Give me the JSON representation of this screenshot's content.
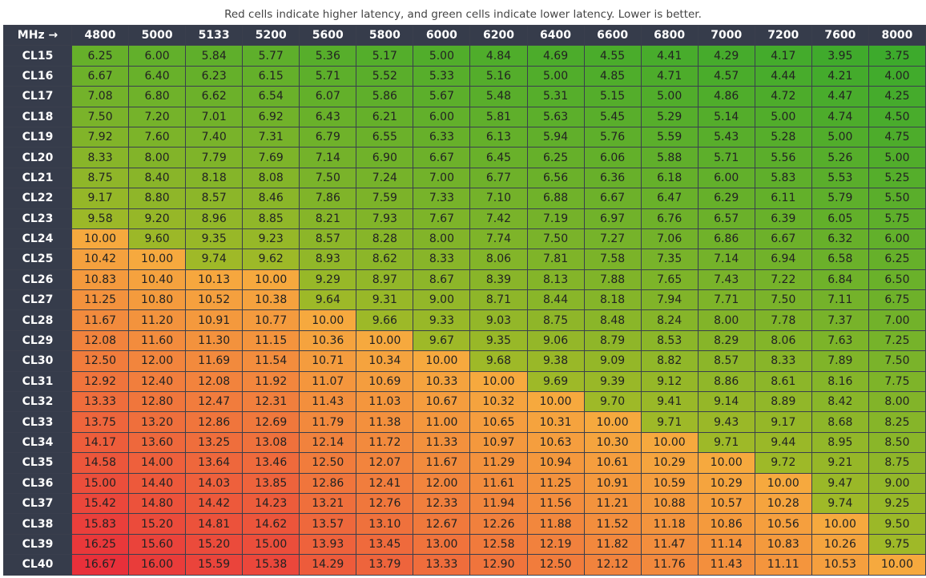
{
  "caption": "Red cells indicate higher latency, and green cells indicate lower latency. Lower is better.",
  "table": {
    "header": [
      "MHz →",
      "4800",
      "5000",
      "5133",
      "5200",
      "5600",
      "5800",
      "6000",
      "6200",
      "6400",
      "6600",
      "6800",
      "7000",
      "7200",
      "7600",
      "8000"
    ],
    "rows": [
      [
        "CL15",
        "6.25",
        "6.00",
        "5.84",
        "5.77",
        "5.36",
        "5.17",
        "5.00",
        "4.84",
        "4.69",
        "4.55",
        "4.41",
        "4.29",
        "4.17",
        "3.95",
        "3.75"
      ],
      [
        "CL16",
        "6.67",
        "6.40",
        "6.23",
        "6.15",
        "5.71",
        "5.52",
        "5.33",
        "5.16",
        "5.00",
        "4.85",
        "4.71",
        "4.57",
        "4.44",
        "4.21",
        "4.00"
      ],
      [
        "CL17",
        "7.08",
        "6.80",
        "6.62",
        "6.54",
        "6.07",
        "5.86",
        "5.67",
        "5.48",
        "5.31",
        "5.15",
        "5.00",
        "4.86",
        "4.72",
        "4.47",
        "4.25"
      ],
      [
        "CL18",
        "7.50",
        "7.20",
        "7.01",
        "6.92",
        "6.43",
        "6.21",
        "6.00",
        "5.81",
        "5.63",
        "5.45",
        "5.29",
        "5.14",
        "5.00",
        "4.74",
        "4.50"
      ],
      [
        "CL19",
        "7.92",
        "7.60",
        "7.40",
        "7.31",
        "6.79",
        "6.55",
        "6.33",
        "6.13",
        "5.94",
        "5.76",
        "5.59",
        "5.43",
        "5.28",
        "5.00",
        "4.75"
      ],
      [
        "CL20",
        "8.33",
        "8.00",
        "7.79",
        "7.69",
        "7.14",
        "6.90",
        "6.67",
        "6.45",
        "6.25",
        "6.06",
        "5.88",
        "5.71",
        "5.56",
        "5.26",
        "5.00"
      ],
      [
        "CL21",
        "8.75",
        "8.40",
        "8.18",
        "8.08",
        "7.50",
        "7.24",
        "7.00",
        "6.77",
        "6.56",
        "6.36",
        "6.18",
        "6.00",
        "5.83",
        "5.53",
        "5.25"
      ],
      [
        "CL22",
        "9.17",
        "8.80",
        "8.57",
        "8.46",
        "7.86",
        "7.59",
        "7.33",
        "7.10",
        "6.88",
        "6.67",
        "6.47",
        "6.29",
        "6.11",
        "5.79",
        "5.50"
      ],
      [
        "CL23",
        "9.58",
        "9.20",
        "8.96",
        "8.85",
        "8.21",
        "7.93",
        "7.67",
        "7.42",
        "7.19",
        "6.97",
        "6.76",
        "6.57",
        "6.39",
        "6.05",
        "5.75"
      ],
      [
        "CL24",
        "10.00",
        "9.60",
        "9.35",
        "9.23",
        "8.57",
        "8.28",
        "8.00",
        "7.74",
        "7.50",
        "7.27",
        "7.06",
        "6.86",
        "6.67",
        "6.32",
        "6.00"
      ],
      [
        "CL25",
        "10.42",
        "10.00",
        "9.74",
        "9.62",
        "8.93",
        "8.62",
        "8.33",
        "8.06",
        "7.81",
        "7.58",
        "7.35",
        "7.14",
        "6.94",
        "6.58",
        "6.25"
      ],
      [
        "CL26",
        "10.83",
        "10.40",
        "10.13",
        "10.00",
        "9.29",
        "8.97",
        "8.67",
        "8.39",
        "8.13",
        "7.88",
        "7.65",
        "7.43",
        "7.22",
        "6.84",
        "6.50"
      ],
      [
        "CL27",
        "11.25",
        "10.80",
        "10.52",
        "10.38",
        "9.64",
        "9.31",
        "9.00",
        "8.71",
        "8.44",
        "8.18",
        "7.94",
        "7.71",
        "7.50",
        "7.11",
        "6.75"
      ],
      [
        "CL28",
        "11.67",
        "11.20",
        "10.91",
        "10.77",
        "10.00",
        "9.66",
        "9.33",
        "9.03",
        "8.75",
        "8.48",
        "8.24",
        "8.00",
        "7.78",
        "7.37",
        "7.00"
      ],
      [
        "CL29",
        "12.08",
        "11.60",
        "11.30",
        "11.15",
        "10.36",
        "10.00",
        "9.67",
        "9.35",
        "9.06",
        "8.79",
        "8.53",
        "8.29",
        "8.06",
        "7.63",
        "7.25"
      ],
      [
        "CL30",
        "12.50",
        "12.00",
        "11.69",
        "11.54",
        "10.71",
        "10.34",
        "10.00",
        "9.68",
        "9.38",
        "9.09",
        "8.82",
        "8.57",
        "8.33",
        "7.89",
        "7.50"
      ],
      [
        "CL31",
        "12.92",
        "12.40",
        "12.08",
        "11.92",
        "11.07",
        "10.69",
        "10.33",
        "10.00",
        "9.69",
        "9.39",
        "9.12",
        "8.86",
        "8.61",
        "8.16",
        "7.75"
      ],
      [
        "CL32",
        "13.33",
        "12.80",
        "12.47",
        "12.31",
        "11.43",
        "11.03",
        "10.67",
        "10.32",
        "10.00",
        "9.70",
        "9.41",
        "9.14",
        "8.89",
        "8.42",
        "8.00"
      ],
      [
        "CL33",
        "13.75",
        "13.20",
        "12.86",
        "12.69",
        "11.79",
        "11.38",
        "11.00",
        "10.65",
        "10.31",
        "10.00",
        "9.71",
        "9.43",
        "9.17",
        "8.68",
        "8.25"
      ],
      [
        "CL34",
        "14.17",
        "13.60",
        "13.25",
        "13.08",
        "12.14",
        "11.72",
        "11.33",
        "10.97",
        "10.63",
        "10.30",
        "10.00",
        "9.71",
        "9.44",
        "8.95",
        "8.50"
      ],
      [
        "CL35",
        "14.58",
        "14.00",
        "13.64",
        "13.46",
        "12.50",
        "12.07",
        "11.67",
        "11.29",
        "10.94",
        "10.61",
        "10.29",
        "10.00",
        "9.72",
        "9.21",
        "8.75"
      ],
      [
        "CL36",
        "15.00",
        "14.40",
        "14.03",
        "13.85",
        "12.86",
        "12.41",
        "12.00",
        "11.61",
        "11.25",
        "10.91",
        "10.59",
        "10.29",
        "10.00",
        "9.47",
        "9.00"
      ],
      [
        "CL37",
        "15.42",
        "14.80",
        "14.42",
        "14.23",
        "13.21",
        "12.76",
        "12.33",
        "11.94",
        "11.56",
        "11.21",
        "10.88",
        "10.57",
        "10.28",
        "9.74",
        "9.25"
      ],
      [
        "CL38",
        "15.83",
        "15.20",
        "14.81",
        "14.62",
        "13.57",
        "13.10",
        "12.67",
        "12.26",
        "11.88",
        "11.52",
        "11.18",
        "10.86",
        "10.56",
        "10.00",
        "9.50"
      ],
      [
        "CL39",
        "16.25",
        "15.60",
        "15.20",
        "15.00",
        "13.93",
        "13.45",
        "13.00",
        "12.58",
        "12.19",
        "11.82",
        "11.47",
        "11.14",
        "10.83",
        "10.26",
        "9.75"
      ],
      [
        "CL40",
        "16.67",
        "16.00",
        "15.59",
        "15.38",
        "14.29",
        "13.79",
        "13.33",
        "12.90",
        "12.50",
        "12.12",
        "11.76",
        "11.43",
        "11.11",
        "10.53",
        "10.00"
      ]
    ]
  }
}
